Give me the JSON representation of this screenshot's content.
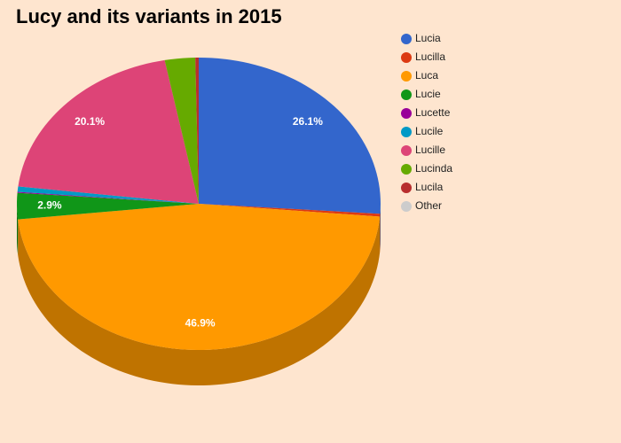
{
  "chart_data": {
    "type": "pie3d",
    "title": "Lucy and its variants in 2015",
    "categories": [
      "Lucia",
      "Lucilla",
      "Luca",
      "Lucie",
      "Lucette",
      "Lucile",
      "Lucille",
      "Lucinda",
      "Lucila",
      "Other"
    ],
    "values": [
      26.1,
      0.3,
      46.9,
      2.9,
      0.1,
      0.6,
      20.1,
      2.7,
      0.3,
      0
    ],
    "value_labels": [
      "26.1%",
      null,
      "46.9%",
      "2.9%",
      null,
      null,
      "20.1%",
      null,
      null,
      null
    ],
    "colors": [
      "#3366cc",
      "#dc3912",
      "#ff9900",
      "#109618",
      "#990099",
      "#0099c6",
      "#dd4477",
      "#66aa00",
      "#b82e2e",
      "#cccccc"
    ],
    "legend": "right"
  }
}
